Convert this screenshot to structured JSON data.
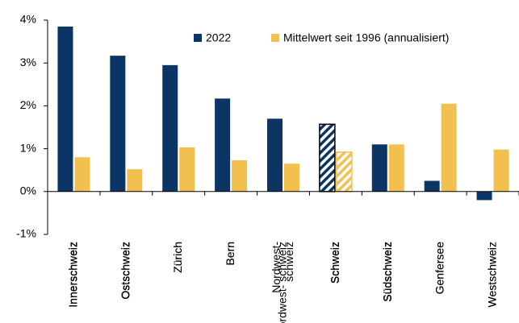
{
  "chart_data": {
    "type": "bar",
    "categories": [
      "Innerschweiz",
      "Ostschweiz",
      "Zürich",
      "Bern",
      "Nordwest-\nschweiz",
      "Schweiz",
      "Südschweiz",
      "Genfersee",
      "Westschweiz"
    ],
    "series": [
      {
        "name": "2022",
        "color": "#0b3565",
        "values": [
          3.85,
          3.17,
          2.95,
          2.17,
          1.7,
          1.57,
          1.1,
          0.25,
          -0.2
        ]
      },
      {
        "name": "Mittelwert seit 1996 (annualisiert)",
        "color": "#f2c04f",
        "values": [
          0.8,
          0.52,
          1.03,
          0.73,
          0.65,
          0.92,
          1.1,
          2.05,
          0.98
        ]
      }
    ],
    "hatched_index": 5,
    "ylim": [
      -1,
      4
    ],
    "yticks": [
      {
        "value": -1,
        "label": "-1%"
      },
      {
        "value": 0,
        "label": "0%"
      },
      {
        "value": 1,
        "label": "1%"
      },
      {
        "value": 2,
        "label": "2%"
      },
      {
        "value": 3,
        "label": "3%"
      },
      {
        "value": 4,
        "label": "4%"
      }
    ],
    "grid": false,
    "legend": "top"
  }
}
